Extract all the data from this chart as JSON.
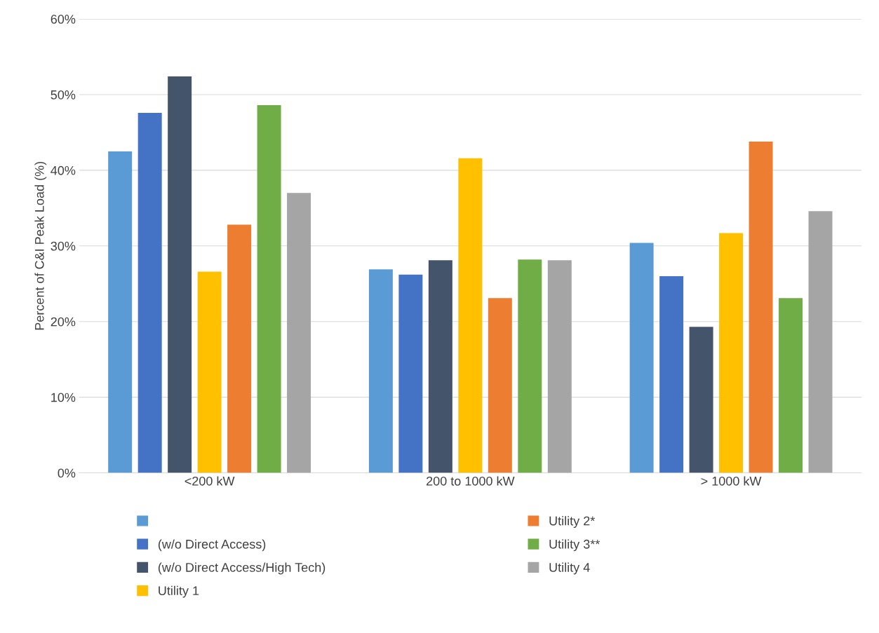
{
  "chart_data": {
    "type": "bar",
    "ylabel": "Percent of C&I Peak Load (%)",
    "categories": [
      "<200 kW",
      "200 to 1000 kW",
      "> 1000 kW"
    ],
    "series": [
      {
        "color": "#5b9bd5",
        "values": [
          42.5,
          26.9,
          30.4
        ]
      },
      {
        "name": "(w/o Direct Access)",
        "color": "#4472c4",
        "values": [
          47.6,
          26.2,
          26.0
        ]
      },
      {
        "name": "(w/o Direct Access/High Tech)",
        "color": "#44546a",
        "values": [
          52.4,
          28.1,
          19.3
        ]
      },
      {
        "name": "Utility 1",
        "color": "#ffc000",
        "values": [
          26.6,
          41.6,
          31.7
        ]
      },
      {
        "name": "Utility 2*",
        "color": "#ed7d31",
        "values": [
          32.8,
          23.1,
          43.8
        ]
      },
      {
        "name": "Utility 3**",
        "color": "#70ad47",
        "values": [
          48.6,
          28.2,
          23.1
        ]
      },
      {
        "name": "Utility 4",
        "color": "#a5a5a5",
        "values": [
          37.0,
          28.1,
          34.6
        ]
      }
    ],
    "ylim": [
      0,
      60
    ],
    "yticks": [
      {
        "value": 0,
        "label": "0%"
      },
      {
        "value": 10,
        "label": "10%"
      },
      {
        "value": 20,
        "label": "20%"
      },
      {
        "value": 30,
        "label": "30%"
      },
      {
        "value": 40,
        "label": "40%"
      },
      {
        "value": 50,
        "label": "50%"
      },
      {
        "value": 60,
        "label": "60%"
      }
    ],
    "grid": "y",
    "legend": "bottom"
  }
}
